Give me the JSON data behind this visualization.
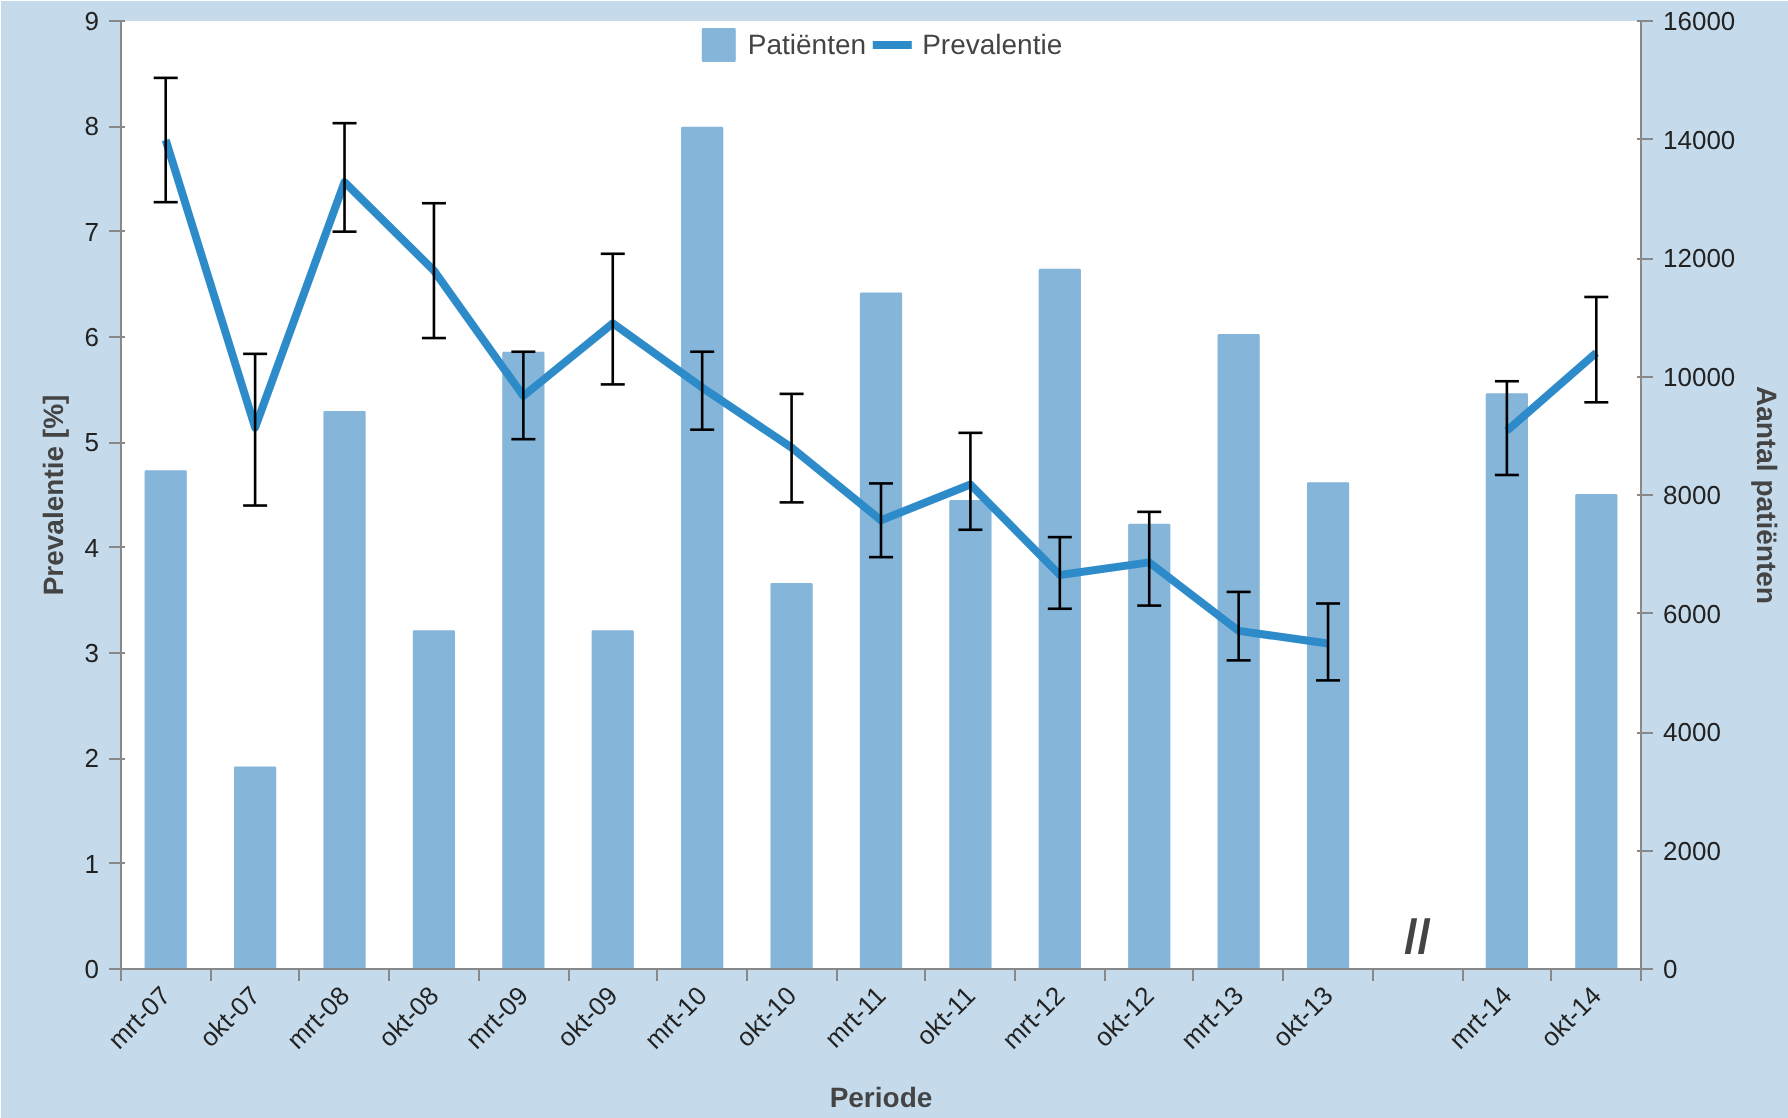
{
  "chart_data": {
    "type": "bar",
    "xlabel": "Periode",
    "ylabel": "Prevalentie [%]",
    "y2label": "Aantal patiënten",
    "categories": [
      "mrt-07",
      "okt-07",
      "mrt-08",
      "okt-08",
      "mrt-09",
      "okt-09",
      "mrt-10",
      "okt-10",
      "mrt-11",
      "okt-11",
      "mrt-12",
      "okt-12",
      "mrt-13",
      "okt-13",
      null,
      "mrt-14",
      "okt-14"
    ],
    "series": [
      {
        "name": "Patiënten",
        "axis": "y2",
        "color": "#85b5d9",
        "values": [
          8400,
          3400,
          9400,
          5700,
          10400,
          5700,
          14200,
          6500,
          11400,
          7900,
          11800,
          7500,
          10700,
          8200,
          null,
          9700,
          8000
        ]
      },
      {
        "name": "Prevalentie",
        "type": "line",
        "color": "#2e8bc9",
        "values": [
          7.87,
          5.14,
          7.47,
          6.63,
          5.44,
          6.13,
          5.52,
          4.95,
          4.26,
          4.6,
          3.74,
          3.86,
          3.21,
          3.09,
          null,
          5.11,
          5.85
        ],
        "errors": [
          [
            7.28,
            8.46
          ],
          [
            4.4,
            5.84
          ],
          [
            7.0,
            8.03
          ],
          [
            5.99,
            7.27
          ],
          [
            5.03,
            5.86
          ],
          [
            5.55,
            6.79
          ],
          [
            5.12,
            5.86
          ],
          [
            4.43,
            5.46
          ],
          [
            3.91,
            4.61
          ],
          [
            4.17,
            5.09
          ],
          [
            3.42,
            4.1
          ],
          [
            3.45,
            4.34
          ],
          [
            2.93,
            3.58
          ],
          [
            2.74,
            3.47
          ],
          null,
          [
            4.69,
            5.58
          ],
          [
            5.38,
            6.38
          ]
        ]
      }
    ],
    "annotations": [
      "//"
    ],
    "ylim": [
      0,
      9
    ],
    "yticks": [
      0,
      1,
      2,
      3,
      4,
      5,
      6,
      7,
      8,
      9
    ],
    "y2lim": [
      0,
      16000
    ],
    "y2ticks": [
      0,
      2000,
      4000,
      6000,
      8000,
      10000,
      12000,
      14000,
      16000
    ],
    "legend": "top",
    "grid": false
  }
}
